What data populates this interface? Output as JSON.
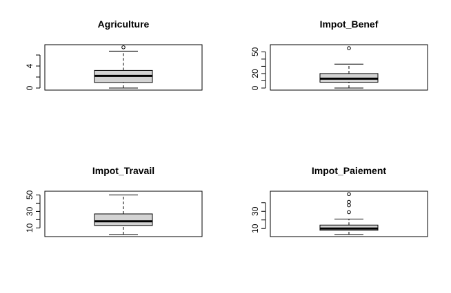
{
  "chart_data": [
    {
      "type": "box",
      "title": "Agriculture",
      "ylim": [
        0,
        7.5
      ],
      "yticks": [
        0,
        2,
        4,
        6
      ],
      "ytick_labels": [
        "0",
        "",
        "4",
        ""
      ],
      "box": {
        "whisker_low": 0,
        "q1": 1,
        "median": 2.2,
        "q3": 3.2,
        "whisker_high": 6.7
      },
      "outliers": [
        7.4
      ]
    },
    {
      "type": "box",
      "title": "Impot_Benef",
      "ylim": [
        0,
        57
      ],
      "yticks": [
        0,
        10,
        20,
        30,
        40,
        50
      ],
      "ytick_labels": [
        "0",
        "",
        "20",
        "",
        "",
        "50"
      ],
      "box": {
        "whisker_low": 0,
        "q1": 8,
        "median": 13,
        "q3": 20,
        "whisker_high": 33
      },
      "outliers": [
        55
      ]
    },
    {
      "type": "box",
      "title": "Impot_Travail",
      "ylim": [
        2,
        52
      ],
      "yticks": [
        10,
        20,
        30,
        40,
        50
      ],
      "ytick_labels": [
        "10",
        "",
        "30",
        "",
        "50"
      ],
      "box": {
        "whisker_low": 2,
        "q1": 13,
        "median": 18,
        "q3": 27,
        "whisker_high": 50
      },
      "outliers": []
    },
    {
      "type": "box",
      "title": "Impot_Paiement",
      "ylim": [
        3,
        51
      ],
      "yticks": [
        10,
        20,
        30,
        40
      ],
      "ytick_labels": [
        "10",
        "",
        "30",
        ""
      ],
      "box": {
        "whisker_low": 3,
        "q1": 8,
        "median": 10,
        "q3": 14,
        "whisker_high": 21
      },
      "outliers": [
        29,
        37,
        41,
        50
      ]
    }
  ]
}
